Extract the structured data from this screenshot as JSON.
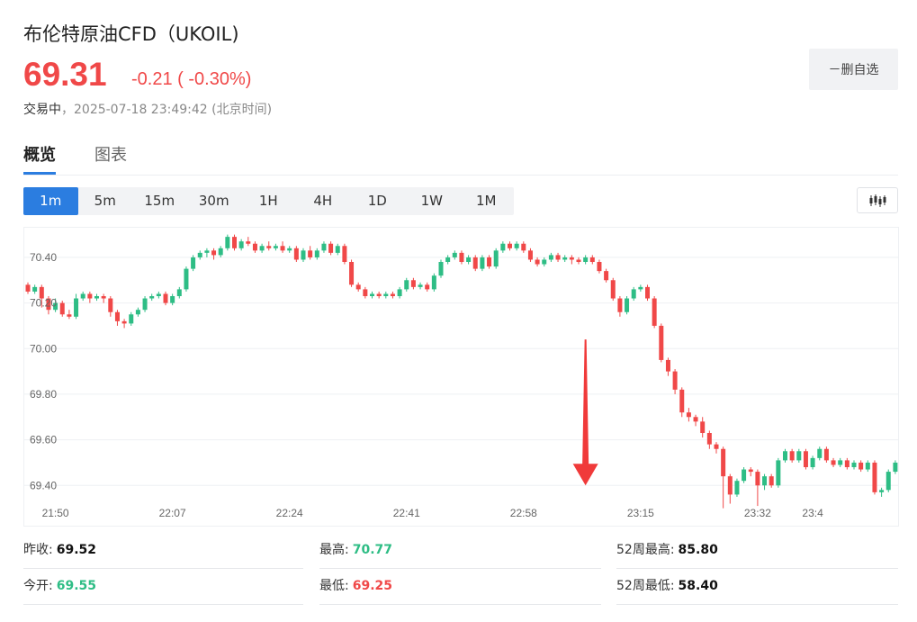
{
  "header": {
    "title": "布伦特原油CFD（UKOIL)",
    "price": "69.31",
    "change": "-0.21 ( -0.30%)",
    "status": "交易中",
    "datetime": "2025-07-18 23:49:42",
    "tz": "(北京时间)"
  },
  "watch_button": "－删自选",
  "tabs": [
    "概览",
    "图表"
  ],
  "periods": [
    "1m",
    "5m",
    "15m",
    "30m",
    "1H",
    "4H",
    "1D",
    "1W",
    "1M"
  ],
  "active_period": "1m",
  "icons": {
    "kline": "candlestick-icon"
  },
  "colors": {
    "up": "#2ebd85",
    "down": "#f04848",
    "accent": "#2b7de0",
    "arrow": "#f03a3a"
  },
  "stats": [
    {
      "label": "昨收:",
      "value": "69.52",
      "color": "black"
    },
    {
      "label": "最高:",
      "value": "70.77",
      "color": "green"
    },
    {
      "label": "52周最高:",
      "value": "85.80",
      "color": "black"
    },
    {
      "label": "今开:",
      "value": "69.55",
      "color": "green"
    },
    {
      "label": "最低:",
      "value": "69.25",
      "color": "red"
    },
    {
      "label": "52周最低:",
      "value": "58.40",
      "color": "black"
    }
  ],
  "chart_data": {
    "type": "candlestick",
    "ylim": [
      69.33,
      70.53
    ],
    "yticks": [
      "70.40",
      "70.20",
      "70.00",
      "69.80",
      "69.60",
      "69.40"
    ],
    "ytick_values": [
      70.4,
      70.2,
      70.0,
      69.8,
      69.6,
      69.4
    ],
    "xticks": [
      "21:50",
      "22:07",
      "22:24",
      "22:41",
      "22:58",
      "23:15",
      "23:32",
      "23:4"
    ],
    "x_start": "21:46",
    "x_interval_minutes": 1,
    "grid": true,
    "annotations": [
      {
        "type": "arrow",
        "direction": "down",
        "from_time": "23:07",
        "from_price": 70.04,
        "to_price": 69.4
      }
    ],
    "candles": [
      [
        70.28,
        70.25,
        70.29,
        70.24
      ],
      [
        70.25,
        70.27,
        70.28,
        70.24
      ],
      [
        70.27,
        70.22,
        70.28,
        70.18
      ],
      [
        70.22,
        70.17,
        70.23,
        70.15
      ],
      [
        70.17,
        70.2,
        70.22,
        70.16
      ],
      [
        70.2,
        70.15,
        70.21,
        70.14
      ],
      [
        70.15,
        70.14,
        70.17,
        70.13
      ],
      [
        70.14,
        70.22,
        70.24,
        70.13
      ],
      [
        70.22,
        70.24,
        70.25,
        70.21
      ],
      [
        70.24,
        70.22,
        70.25,
        70.2
      ],
      [
        70.22,
        70.23,
        70.24,
        70.21
      ],
      [
        70.23,
        70.22,
        70.24,
        70.2
      ],
      [
        70.22,
        70.16,
        70.23,
        70.14
      ],
      [
        70.16,
        70.12,
        70.17,
        70.1
      ],
      [
        70.12,
        70.11,
        70.13,
        70.09
      ],
      [
        70.11,
        70.15,
        70.16,
        70.1
      ],
      [
        70.15,
        70.17,
        70.18,
        70.14
      ],
      [
        70.17,
        70.22,
        70.23,
        70.16
      ],
      [
        70.22,
        70.23,
        70.24,
        70.21
      ],
      [
        70.23,
        70.24,
        70.25,
        70.22
      ],
      [
        70.24,
        70.2,
        70.25,
        70.19
      ],
      [
        70.2,
        70.23,
        70.24,
        70.19
      ],
      [
        70.23,
        70.26,
        70.27,
        70.22
      ],
      [
        70.26,
        70.35,
        70.36,
        70.25
      ],
      [
        70.35,
        70.4,
        70.41,
        70.34
      ],
      [
        70.4,
        70.42,
        70.43,
        70.39
      ],
      [
        70.42,
        70.43,
        70.44,
        70.4
      ],
      [
        70.43,
        70.41,
        70.44,
        70.39
      ],
      [
        70.41,
        70.44,
        70.45,
        70.4
      ],
      [
        70.44,
        70.49,
        70.5,
        70.43
      ],
      [
        70.49,
        70.44,
        70.5,
        70.43
      ],
      [
        70.44,
        70.47,
        70.48,
        70.43
      ],
      [
        70.47,
        70.46,
        70.49,
        70.45
      ],
      [
        70.46,
        70.43,
        70.47,
        70.42
      ],
      [
        70.43,
        70.45,
        70.46,
        70.42
      ],
      [
        70.45,
        70.44,
        70.47,
        70.43
      ],
      [
        70.44,
        70.45,
        70.46,
        70.43
      ],
      [
        70.45,
        70.43,
        70.47,
        70.42
      ],
      [
        70.43,
        70.44,
        70.45,
        70.42
      ],
      [
        70.44,
        70.39,
        70.45,
        70.38
      ],
      [
        70.39,
        70.43,
        70.44,
        70.38
      ],
      [
        70.43,
        70.4,
        70.45,
        70.39
      ],
      [
        70.4,
        70.43,
        70.44,
        70.39
      ],
      [
        70.43,
        70.46,
        70.47,
        70.42
      ],
      [
        70.46,
        70.42,
        70.47,
        70.41
      ],
      [
        70.42,
        70.45,
        70.46,
        70.41
      ],
      [
        70.45,
        70.38,
        70.46,
        70.37
      ],
      [
        70.38,
        70.28,
        70.39,
        70.27
      ],
      [
        70.28,
        70.26,
        70.29,
        70.25
      ],
      [
        70.26,
        70.23,
        70.27,
        70.22
      ],
      [
        70.23,
        70.24,
        70.25,
        70.22
      ],
      [
        70.24,
        70.23,
        70.25,
        70.22
      ],
      [
        70.23,
        70.24,
        70.25,
        70.22
      ],
      [
        70.24,
        70.23,
        70.25,
        70.22
      ],
      [
        70.23,
        70.26,
        70.27,
        70.22
      ],
      [
        70.26,
        70.3,
        70.31,
        70.25
      ],
      [
        70.3,
        70.27,
        70.31,
        70.26
      ],
      [
        70.27,
        70.28,
        70.29,
        70.26
      ],
      [
        70.28,
        70.26,
        70.29,
        70.25
      ],
      [
        70.26,
        70.32,
        70.33,
        70.25
      ],
      [
        70.32,
        70.38,
        70.39,
        70.31
      ],
      [
        70.38,
        70.4,
        70.41,
        70.37
      ],
      [
        70.4,
        70.42,
        70.43,
        70.39
      ],
      [
        70.42,
        70.38,
        70.43,
        70.37
      ],
      [
        70.38,
        70.4,
        70.41,
        70.37
      ],
      [
        70.4,
        70.35,
        70.41,
        70.34
      ],
      [
        70.35,
        70.4,
        70.41,
        70.34
      ],
      [
        70.4,
        70.36,
        70.41,
        70.35
      ],
      [
        70.36,
        70.43,
        70.44,
        70.35
      ],
      [
        70.43,
        70.46,
        70.47,
        70.42
      ],
      [
        70.46,
        70.44,
        70.47,
        70.43
      ],
      [
        70.44,
        70.46,
        70.47,
        70.43
      ],
      [
        70.46,
        70.43,
        70.47,
        70.42
      ],
      [
        70.43,
        70.39,
        70.44,
        70.38
      ],
      [
        70.39,
        70.37,
        70.4,
        70.36
      ],
      [
        70.37,
        70.39,
        70.4,
        70.36
      ],
      [
        70.39,
        70.41,
        70.42,
        70.38
      ],
      [
        70.41,
        70.39,
        70.42,
        70.38
      ],
      [
        70.39,
        70.4,
        70.41,
        70.38
      ],
      [
        70.4,
        70.39,
        70.41,
        70.37
      ],
      [
        70.39,
        70.38,
        70.4,
        70.37
      ],
      [
        70.38,
        70.4,
        70.41,
        70.37
      ],
      [
        70.4,
        70.38,
        70.41,
        70.37
      ],
      [
        70.38,
        70.34,
        70.39,
        70.33
      ],
      [
        70.34,
        70.3,
        70.35,
        70.29
      ],
      [
        70.3,
        70.22,
        70.31,
        70.21
      ],
      [
        70.22,
        70.16,
        70.23,
        70.14
      ],
      [
        70.16,
        70.22,
        70.23,
        70.15
      ],
      [
        70.22,
        70.26,
        70.27,
        70.21
      ],
      [
        70.26,
        70.27,
        70.28,
        70.25
      ],
      [
        70.27,
        70.22,
        70.28,
        70.21
      ],
      [
        70.22,
        70.1,
        70.23,
        70.09
      ],
      [
        70.1,
        69.95,
        70.11,
        69.94
      ],
      [
        69.95,
        69.9,
        69.96,
        69.88
      ],
      [
        69.9,
        69.82,
        69.91,
        69.8
      ],
      [
        69.82,
        69.72,
        69.83,
        69.7
      ],
      [
        69.72,
        69.7,
        69.74,
        69.68
      ],
      [
        69.7,
        69.68,
        69.71,
        69.66
      ],
      [
        69.68,
        69.63,
        69.7,
        69.61
      ],
      [
        69.63,
        69.58,
        69.64,
        69.56
      ],
      [
        69.58,
        69.56,
        69.59,
        69.54
      ],
      [
        69.56,
        69.44,
        69.57,
        69.3
      ],
      [
        69.44,
        69.36,
        69.45,
        69.32
      ],
      [
        69.36,
        69.42,
        69.43,
        69.35
      ],
      [
        69.42,
        69.47,
        69.48,
        69.41
      ],
      [
        69.47,
        69.46,
        69.48,
        69.44
      ],
      [
        69.46,
        69.4,
        69.47,
        69.31
      ],
      [
        69.4,
        69.44,
        69.45,
        69.38
      ],
      [
        69.44,
        69.4,
        69.45,
        69.39
      ],
      [
        69.4,
        69.51,
        69.52,
        69.39
      ],
      [
        69.51,
        69.55,
        69.56,
        69.5
      ],
      [
        69.55,
        69.51,
        69.56,
        69.5
      ],
      [
        69.51,
        69.55,
        69.56,
        69.5
      ],
      [
        69.55,
        69.48,
        69.56,
        69.47
      ],
      [
        69.48,
        69.52,
        69.53,
        69.47
      ],
      [
        69.52,
        69.56,
        69.57,
        69.51
      ],
      [
        69.56,
        69.51,
        69.57,
        69.5
      ],
      [
        69.51,
        69.49,
        69.52,
        69.48
      ],
      [
        69.49,
        69.51,
        69.52,
        69.48
      ],
      [
        69.51,
        69.48,
        69.52,
        69.47
      ],
      [
        69.48,
        69.5,
        69.51,
        69.47
      ],
      [
        69.5,
        69.47,
        69.51,
        69.46
      ],
      [
        69.47,
        69.5,
        69.51,
        69.46
      ],
      [
        69.5,
        69.37,
        69.51,
        69.36
      ],
      [
        69.37,
        69.38,
        69.39,
        69.35
      ],
      [
        69.38,
        69.46,
        69.47,
        69.37
      ],
      [
        69.46,
        69.5,
        69.51,
        69.45
      ],
      [
        69.5,
        69.48,
        69.51,
        69.47
      ],
      [
        69.48,
        69.52,
        69.53,
        69.47
      ],
      [
        69.52,
        69.47,
        69.53,
        69.46
      ],
      [
        69.47,
        69.48,
        69.49,
        69.46
      ],
      [
        69.48,
        69.44,
        69.49,
        69.43
      ],
      [
        69.44,
        69.45,
        69.46,
        69.43
      ],
      [
        69.45,
        69.42,
        69.46,
        69.41
      ],
      [
        69.42,
        69.4,
        69.43,
        69.39
      ],
      [
        69.4,
        69.38,
        69.41,
        69.37
      ],
      [
        69.38,
        69.39,
        69.4,
        69.37
      ],
      [
        69.39,
        69.36,
        69.4,
        69.35
      ],
      [
        69.36,
        69.34,
        69.37,
        69.33
      ],
      [
        69.34,
        69.35,
        69.36,
        69.33
      ]
    ]
  }
}
